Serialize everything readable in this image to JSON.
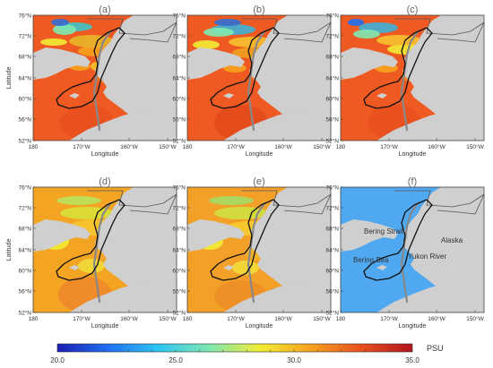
{
  "panels": [
    {
      "letter": "(a)",
      "variant": "a"
    },
    {
      "letter": "(b)",
      "variant": "b"
    },
    {
      "letter": "(c)",
      "variant": "c"
    },
    {
      "letter": "(d)",
      "variant": "d"
    },
    {
      "letter": "(e)",
      "variant": "e"
    },
    {
      "letter": "(f)",
      "variant": "f"
    }
  ],
  "axes": {
    "ylabel": "Latitude",
    "xlabel": "Longitude",
    "lat_ticks": [
      "76°N",
      "72°N",
      "68°N",
      "64°N",
      "60°N",
      "56°N",
      "52°N"
    ],
    "lon_ticks": [
      "180",
      "170°W",
      "160°W",
      "150°W"
    ]
  },
  "annotations": {
    "bering_strait": "Bering Strait",
    "alaska": "Alaska",
    "bering_sea": "Bering Sea",
    "yukon_river": "Yukon River"
  },
  "colorbar": {
    "labels": [
      "20.0",
      "25.0",
      "30.0",
      "35.0"
    ],
    "unit": "PSU",
    "stops": [
      "#1b1fb4",
      "#1f6ff0",
      "#2dc6f2",
      "#7ee8b0",
      "#f2ec34",
      "#f6a21e",
      "#e8501e",
      "#b3141c"
    ]
  },
  "colors": {
    "land": "#cfcfcf",
    "saline_sea": "#ef5a22",
    "fresh_arctic": "#4fa8f0",
    "ship_track": "#888888",
    "flight_track": "#111111"
  }
}
